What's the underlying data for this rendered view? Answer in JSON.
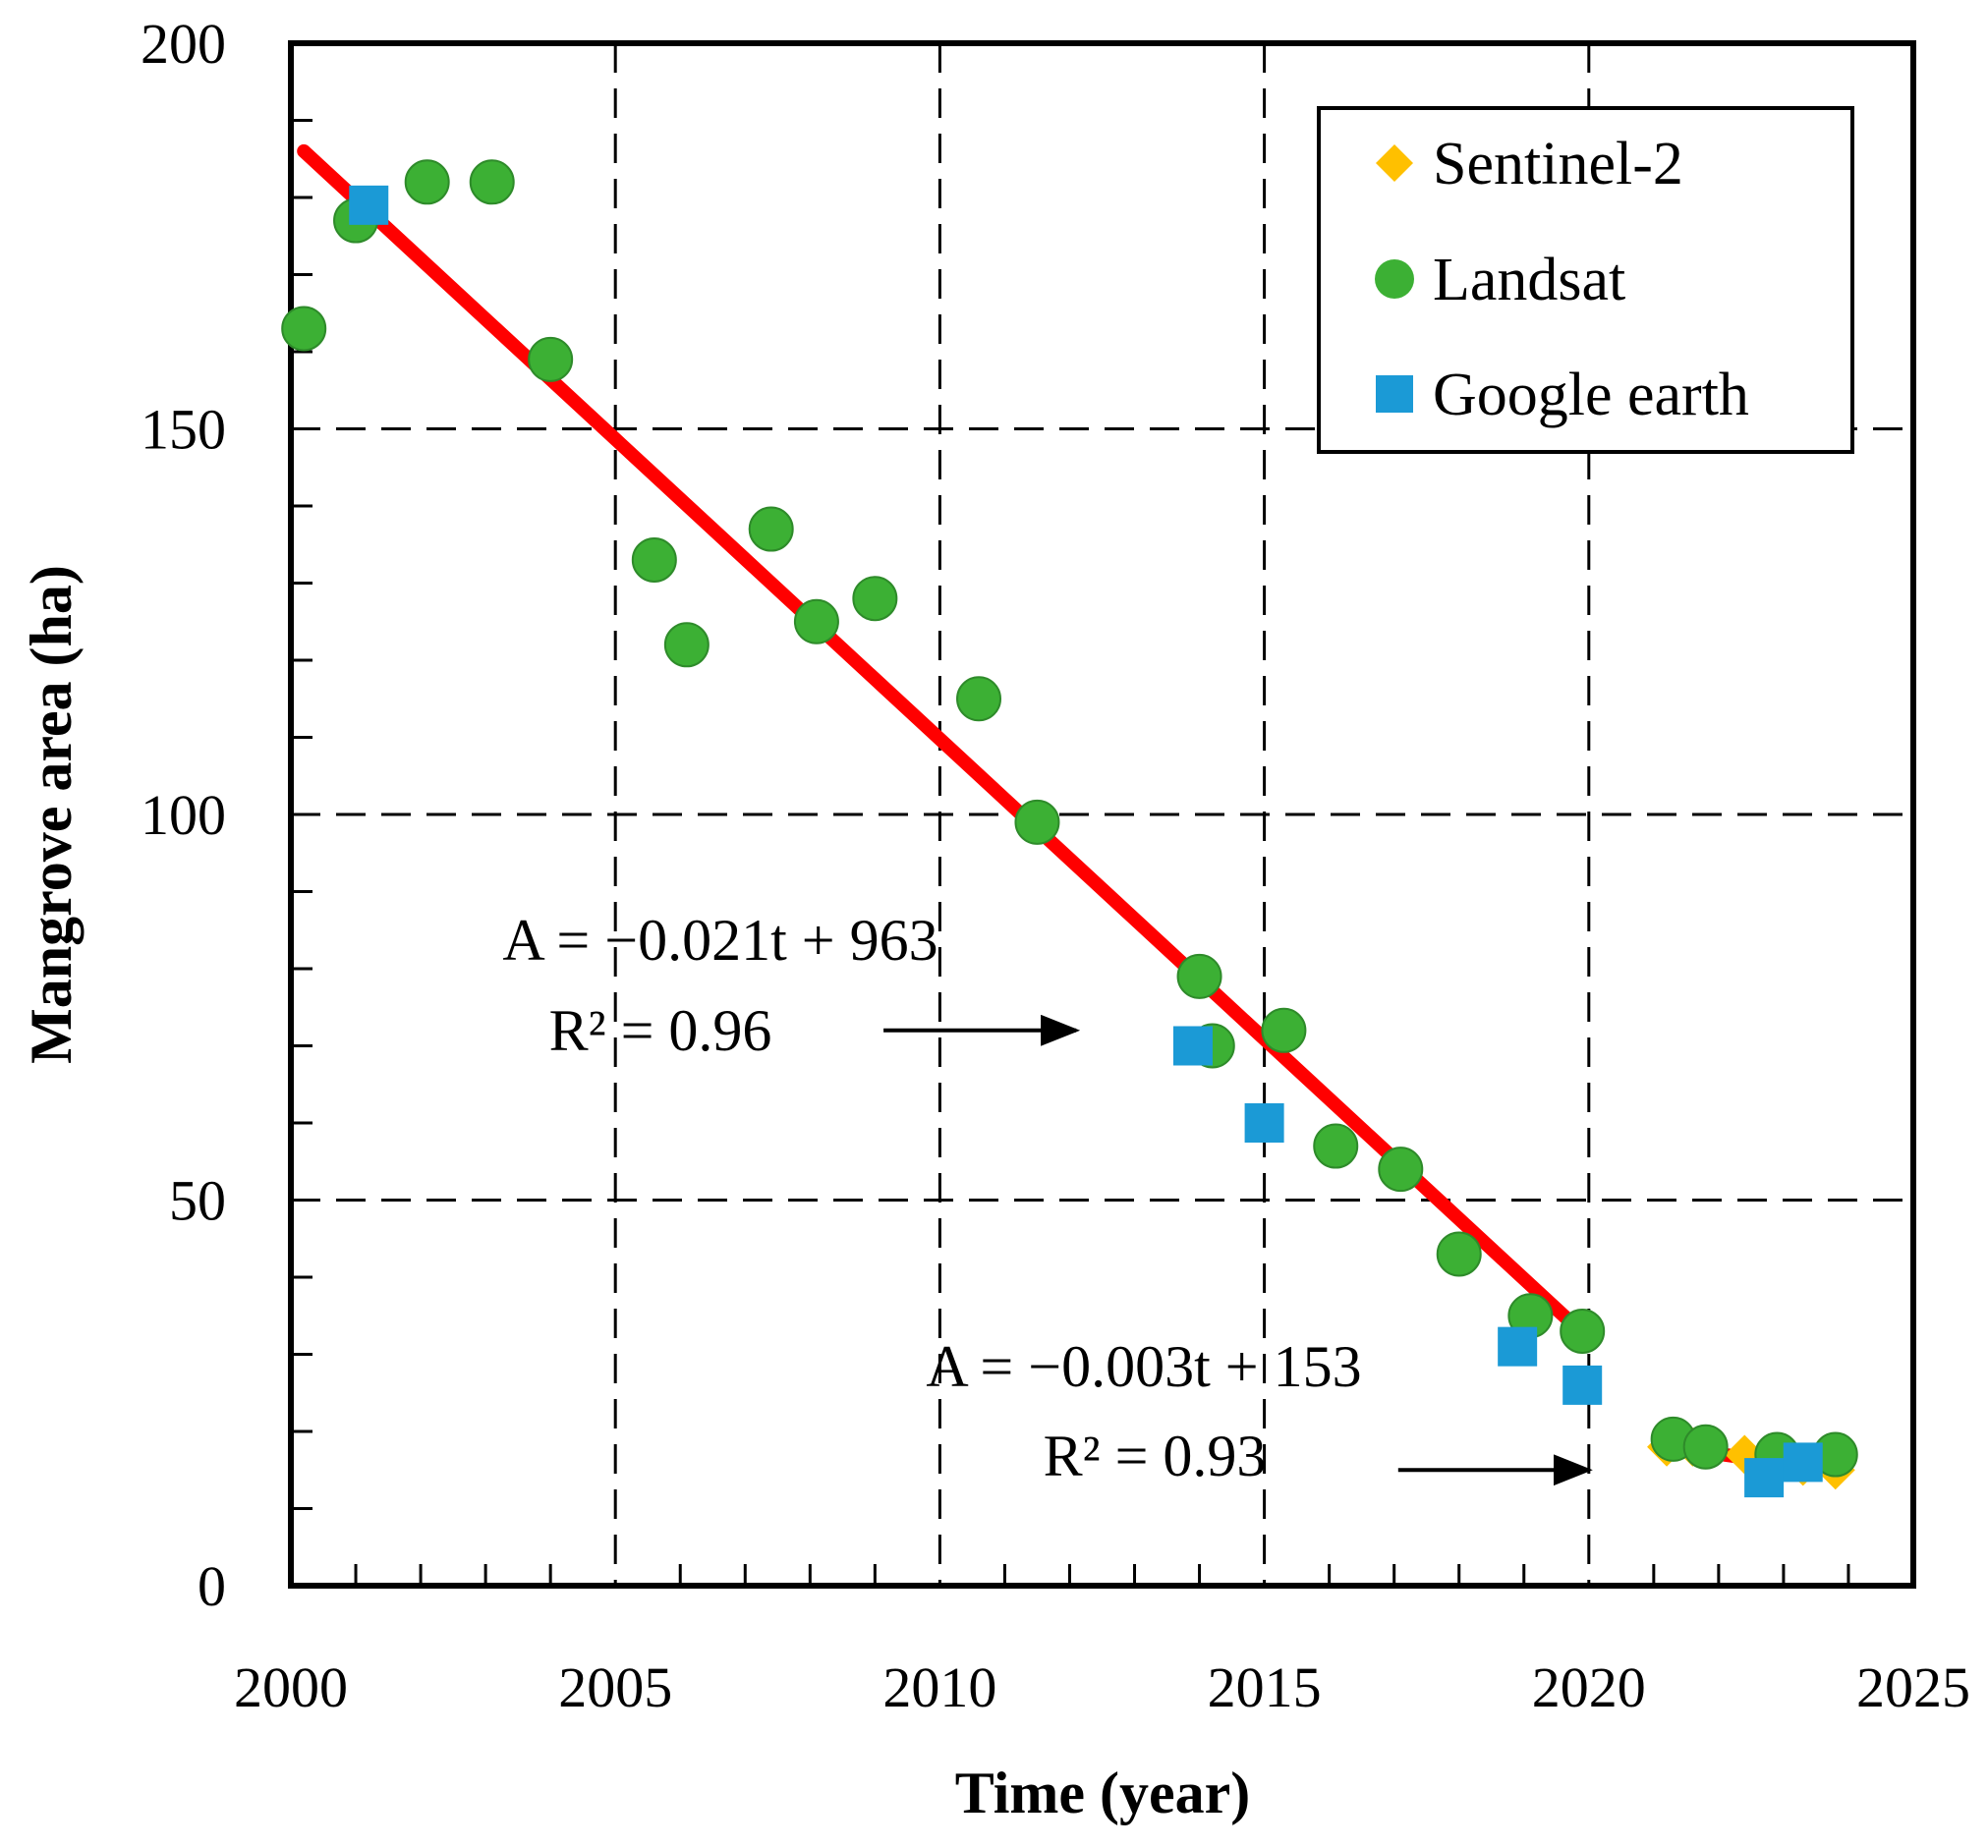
{
  "chart_data": {
    "type": "scatter",
    "title": "",
    "xlabel": "Time (year)",
    "ylabel": "Mangrove area (ha)",
    "xlim": [
      2000,
      2025
    ],
    "ylim": [
      0,
      200
    ],
    "x_ticks": [
      2000,
      2005,
      2010,
      2015,
      2020,
      2025
    ],
    "y_ticks": [
      0,
      50,
      100,
      150,
      200
    ],
    "x_minor_ticks": [
      2001,
      2002,
      2003,
      2004,
      2006,
      2007,
      2008,
      2009,
      2011,
      2012,
      2013,
      2014,
      2016,
      2017,
      2018,
      2019,
      2021,
      2022,
      2023,
      2024
    ],
    "y_minor_ticks": [
      10,
      20,
      30,
      40,
      60,
      70,
      80,
      90,
      110,
      120,
      130,
      140,
      160,
      170,
      180,
      190
    ],
    "grid": "dashed major gridlines",
    "legend_position": "top-right",
    "series": [
      {
        "name": "Sentinel-2",
        "marker": "diamond",
        "color": "#FFC000",
        "points": [
          [
            2021.2,
            18
          ],
          [
            2021.6,
            18
          ],
          [
            2022.4,
            17
          ],
          [
            2022.9,
            16
          ],
          [
            2023.3,
            15.5
          ],
          [
            2023.8,
            15
          ]
        ]
      },
      {
        "name": "Landsat",
        "marker": "circle",
        "color": "#3CB034",
        "points": [
          [
            2000.2,
            163
          ],
          [
            2001.0,
            177
          ],
          [
            2002.1,
            182
          ],
          [
            2003.1,
            182
          ],
          [
            2004.0,
            159
          ],
          [
            2005.6,
            133
          ],
          [
            2006.1,
            122
          ],
          [
            2007.4,
            137
          ],
          [
            2008.1,
            125
          ],
          [
            2009.0,
            128
          ],
          [
            2010.6,
            115
          ],
          [
            2011.5,
            99
          ],
          [
            2014.0,
            79
          ],
          [
            2014.2,
            70
          ],
          [
            2015.3,
            72
          ],
          [
            2016.1,
            57
          ],
          [
            2017.1,
            54
          ],
          [
            2018.0,
            43
          ],
          [
            2019.1,
            35
          ],
          [
            2019.9,
            33
          ],
          [
            2021.3,
            19
          ],
          [
            2021.8,
            18
          ],
          [
            2022.9,
            17
          ],
          [
            2023.8,
            17
          ]
        ]
      },
      {
        "name": "Google earth",
        "marker": "square",
        "color": "#1B9AD6",
        "points": [
          [
            2001.2,
            179
          ],
          [
            2013.9,
            70
          ],
          [
            2015.0,
            60
          ],
          [
            2018.9,
            31
          ],
          [
            2019.9,
            26
          ],
          [
            2022.7,
            14
          ],
          [
            2023.3,
            16
          ]
        ]
      }
    ],
    "trendlines": [
      {
        "color": "#FF0000",
        "from": [
          2000.2,
          186
        ],
        "to": [
          2020.0,
          32
        ]
      },
      {
        "color": "#FF0000",
        "from": [
          2021.2,
          18
        ],
        "to": [
          2023.8,
          15
        ]
      }
    ],
    "annotations": [
      {
        "lines": [
          "A = −0.021t + 963",
          "R² = 0.96"
        ],
        "arrow_to": [
          2012.1,
          72
        ]
      },
      {
        "lines": [
          "A = −0.003t + 153",
          "R² = 0.93"
        ],
        "arrow_to": [
          2020.0,
          15
        ]
      }
    ]
  }
}
